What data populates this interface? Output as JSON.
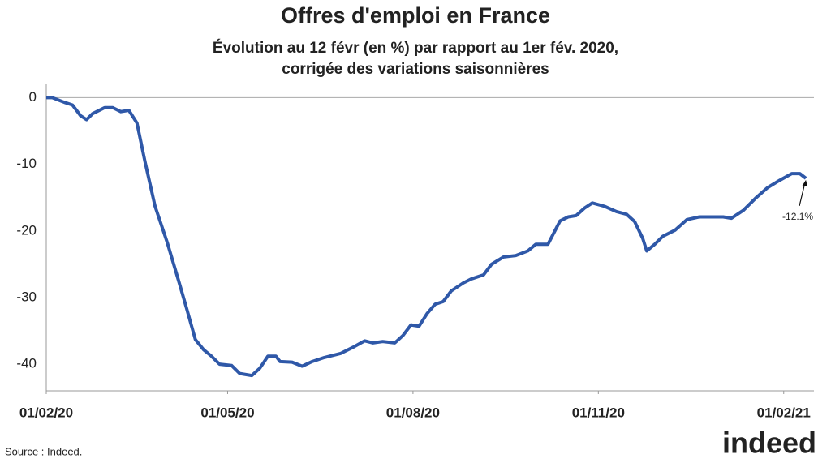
{
  "chart_data": {
    "type": "line",
    "title": "Offres d'emploi en France",
    "subtitle": [
      "Évolution au 12 févr (en %) par rapport au 1er fév. 2020,",
      "corrigée des variations saisonnières"
    ],
    "x": [
      "2020-02-01",
      "2020-02-04",
      "2020-02-10",
      "2020-02-14",
      "2020-02-18",
      "2020-02-21",
      "2020-02-24",
      "2020-03-01",
      "2020-03-05",
      "2020-03-09",
      "2020-03-13",
      "2020-03-17",
      "2020-03-21",
      "2020-03-26",
      "2020-04-01",
      "2020-04-07",
      "2020-04-11",
      "2020-04-15",
      "2020-04-19",
      "2020-04-23",
      "2020-04-27",
      "2020-05-03",
      "2020-05-07",
      "2020-05-13",
      "2020-05-17",
      "2020-05-21",
      "2020-05-25",
      "2020-05-27",
      "2020-06-02",
      "2020-06-07",
      "2020-06-12",
      "2020-06-18",
      "2020-06-26",
      "2020-07-02",
      "2020-07-08",
      "2020-07-12",
      "2020-07-17",
      "2020-07-23",
      "2020-07-27",
      "2020-07-31",
      "2020-08-04",
      "2020-08-08",
      "2020-08-12",
      "2020-08-16",
      "2020-08-20",
      "2020-08-26",
      "2020-08-30",
      "2020-09-05",
      "2020-09-09",
      "2020-09-15",
      "2020-09-21",
      "2020-09-27",
      "2020-10-01",
      "2020-10-07",
      "2020-10-13",
      "2020-10-17",
      "2020-10-21",
      "2020-10-25",
      "2020-10-29",
      "2020-11-04",
      "2020-11-10",
      "2020-11-15",
      "2020-11-19",
      "2020-11-23",
      "2020-11-25",
      "2020-11-29",
      "2020-12-03",
      "2020-12-09",
      "2020-12-15",
      "2020-12-21",
      "2020-12-27",
      "2021-01-02",
      "2021-01-06",
      "2021-01-12",
      "2021-01-18",
      "2021-01-24",
      "2021-01-30",
      "2021-02-05",
      "2021-02-09",
      "2021-02-12"
    ],
    "series": [
      {
        "name": "Offres d'emploi",
        "color": "#2f58a8",
        "values": [
          0,
          0,
          -0.7,
          -1.1,
          -2.7,
          -3.3,
          -2.4,
          -1.5,
          -1.5,
          -2.1,
          -1.9,
          -3.8,
          -9.6,
          -16.3,
          -21.7,
          -27.8,
          -32,
          -36.3,
          -37.8,
          -38.8,
          -40,
          -40.2,
          -41.4,
          -41.7,
          -40.6,
          -38.8,
          -38.8,
          -39.6,
          -39.7,
          -40.3,
          -39.6,
          -39,
          -38.4,
          -37.5,
          -36.5,
          -36.8,
          -36.6,
          -36.8,
          -35.7,
          -34.1,
          -34.3,
          -32.4,
          -31,
          -30.6,
          -29,
          -27.8,
          -27.2,
          -26.6,
          -25,
          -23.9,
          -23.7,
          -23,
          -22,
          -22,
          -18.5,
          -17.9,
          -17.7,
          -16.6,
          -15.8,
          -16.3,
          -17.1,
          -17.5,
          -18.6,
          -21.1,
          -23,
          -22,
          -20.8,
          -19.9,
          -18.3,
          -17.9,
          -17.9,
          -17.9,
          -18.1,
          -16.9,
          -15.1,
          -13.5,
          -12.4,
          -11.4,
          -11.4,
          -12.1
        ]
      }
    ],
    "xlim": [
      "2020-02-01",
      "2021-02-16"
    ],
    "xticks": [
      {
        "value": "2020-02-01",
        "label": "01/02/20"
      },
      {
        "value": "2020-05-01",
        "label": "01/05/20"
      },
      {
        "value": "2020-08-01",
        "label": "01/08/20"
      },
      {
        "value": "2020-11-01",
        "label": "01/11/20"
      },
      {
        "value": "2021-02-01",
        "label": "01/02/21"
      }
    ],
    "ylim": [
      -44,
      2
    ],
    "yticks": [
      -40,
      -30,
      -20,
      -10,
      0
    ],
    "grid": false,
    "zero_line": true,
    "annotation": "-12.1%",
    "source": "Source : Indeed.",
    "logo": "indeed"
  }
}
